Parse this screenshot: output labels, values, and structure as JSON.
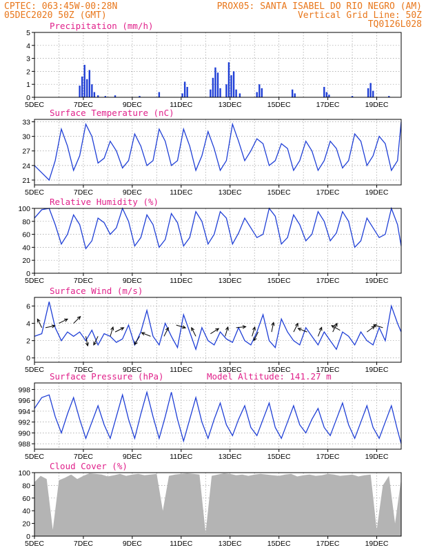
{
  "header": {
    "line1_left": "CPTEC:   063:45W-00:28N",
    "line1_right": "PROX05: SANTA ISABEL DO RIO NEGRO (AM)",
    "line2_left": "05DEC2020 50Z (GMT)",
    "line2_right": "Vertical Grid Line: 50Z",
    "line3_right": "TQ0126L028"
  },
  "colors": {
    "header": "#e8761a",
    "panel_title": "#e0208a",
    "series": "#1f3fd6",
    "bars": "#1f3fd6",
    "cloud": "#b4b4b4",
    "wind_arrow": "#000000"
  },
  "chart_data": [
    {
      "id": "precip",
      "type": "bar",
      "title": "Precipitation (mm/h)",
      "ylim": [
        0,
        5
      ],
      "yticks": [
        0,
        1,
        2,
        3,
        4,
        5
      ],
      "xlabels": [
        "5DEC",
        "7DEC",
        "9DEC",
        "11DEC",
        "13DEC",
        "15DEC",
        "17DEC",
        "19DEC"
      ],
      "x_span_days": 15,
      "grid": true,
      "events": [
        [
          1.85,
          0.9
        ],
        [
          1.95,
          1.6
        ],
        [
          2.05,
          2.5
        ],
        [
          2.15,
          1.4
        ],
        [
          2.25,
          2.1
        ],
        [
          2.35,
          1.0
        ],
        [
          2.45,
          0.4
        ],
        [
          2.6,
          0.15
        ],
        [
          2.9,
          0.1
        ],
        [
          3.3,
          0.15
        ],
        [
          4.3,
          0.1
        ],
        [
          5.1,
          0.4
        ],
        [
          6.05,
          0.3
        ],
        [
          6.15,
          1.2
        ],
        [
          6.25,
          0.8
        ],
        [
          7.2,
          0.6
        ],
        [
          7.3,
          1.5
        ],
        [
          7.4,
          2.3
        ],
        [
          7.5,
          1.9
        ],
        [
          7.6,
          0.7
        ],
        [
          7.85,
          1.0
        ],
        [
          7.95,
          2.7
        ],
        [
          8.05,
          1.7
        ],
        [
          8.15,
          2.0
        ],
        [
          8.25,
          0.6
        ],
        [
          8.4,
          0.3
        ],
        [
          9.1,
          0.4
        ],
        [
          9.2,
          1.0
        ],
        [
          9.3,
          0.7
        ],
        [
          10.55,
          0.6
        ],
        [
          10.65,
          0.3
        ],
        [
          11.85,
          0.8
        ],
        [
          11.95,
          0.4
        ],
        [
          12.05,
          0.2
        ],
        [
          13.0,
          0.1
        ],
        [
          13.65,
          0.7
        ],
        [
          13.75,
          1.1
        ],
        [
          13.85,
          0.5
        ],
        [
          14.5,
          0.1
        ]
      ]
    },
    {
      "id": "temp",
      "type": "line",
      "title": "Surface Temperature (nC)",
      "ylim": [
        20,
        33.5
      ],
      "yticks": [
        21,
        24,
        27,
        30,
        33
      ],
      "xlabels": [
        "5DEC",
        "7DEC",
        "9DEC",
        "11DEC",
        "13DEC",
        "15DEC",
        "17DEC",
        "19DEC"
      ],
      "x_span_days": 15,
      "grid": true,
      "x": [
        0.0,
        0.3,
        0.6,
        0.85,
        1.1,
        1.35,
        1.6,
        1.85,
        2.1,
        2.35,
        2.6,
        2.85,
        3.1,
        3.35,
        3.6,
        3.85,
        4.1,
        4.35,
        4.6,
        4.85,
        5.1,
        5.35,
        5.6,
        5.85,
        6.1,
        6.35,
        6.6,
        6.85,
        7.1,
        7.35,
        7.6,
        7.85,
        8.1,
        8.35,
        8.6,
        8.85,
        9.1,
        9.35,
        9.6,
        9.85,
        10.1,
        10.35,
        10.6,
        10.85,
        11.1,
        11.35,
        11.6,
        11.85,
        12.1,
        12.35,
        12.6,
        12.85,
        13.1,
        13.35,
        13.6,
        13.85,
        14.1,
        14.35,
        14.6,
        14.85,
        15.0
      ],
      "y": [
        24,
        22.5,
        21,
        25,
        31.5,
        28,
        23,
        26,
        32.5,
        30,
        24.5,
        25.5,
        29,
        27,
        23.5,
        25,
        30.5,
        28,
        24,
        25,
        31.5,
        29,
        24,
        25,
        31.5,
        28,
        23,
        26,
        31,
        27.5,
        23,
        25,
        32.5,
        29,
        25,
        27,
        29.5,
        28.5,
        24,
        25,
        28.5,
        27.5,
        23,
        25,
        29,
        27,
        23,
        25,
        29,
        27.5,
        23.5,
        25,
        30.5,
        29,
        24,
        26,
        30,
        28.5,
        23,
        25,
        33
      ]
    },
    {
      "id": "rh",
      "type": "line",
      "title": "Relative Humidity (%)",
      "ylim": [
        0,
        100
      ],
      "yticks": [
        0,
        20,
        40,
        60,
        80,
        100
      ],
      "xlabels": [
        "5DEC",
        "7DEC",
        "9DEC",
        "11DEC",
        "13DEC",
        "15DEC",
        "17DEC",
        "19DEC"
      ],
      "x_span_days": 15,
      "grid": true,
      "x": [
        0.0,
        0.3,
        0.6,
        0.85,
        1.1,
        1.35,
        1.6,
        1.85,
        2.1,
        2.35,
        2.6,
        2.85,
        3.1,
        3.35,
        3.6,
        3.85,
        4.1,
        4.35,
        4.6,
        4.85,
        5.1,
        5.35,
        5.6,
        5.85,
        6.1,
        6.35,
        6.6,
        6.85,
        7.1,
        7.35,
        7.6,
        7.85,
        8.1,
        8.35,
        8.6,
        8.85,
        9.1,
        9.35,
        9.6,
        9.85,
        10.1,
        10.35,
        10.6,
        10.85,
        11.1,
        11.35,
        11.6,
        11.85,
        12.1,
        12.35,
        12.6,
        12.85,
        13.1,
        13.35,
        13.6,
        13.85,
        14.1,
        14.35,
        14.6,
        14.85,
        15.0
      ],
      "y": [
        85,
        98,
        100,
        75,
        45,
        60,
        90,
        75,
        38,
        50,
        85,
        78,
        60,
        70,
        100,
        80,
        42,
        55,
        90,
        75,
        40,
        52,
        92,
        78,
        42,
        55,
        95,
        80,
        45,
        60,
        95,
        85,
        45,
        62,
        85,
        70,
        55,
        60,
        100,
        88,
        45,
        55,
        90,
        75,
        50,
        60,
        95,
        80,
        50,
        62,
        95,
        80,
        40,
        50,
        85,
        70,
        55,
        60,
        100,
        75,
        42
      ]
    },
    {
      "id": "wind",
      "type": "line",
      "title": "Surface Wind (m/s)",
      "ylim": [
        -0.5,
        7
      ],
      "yticks": [
        0,
        2,
        4,
        6
      ],
      "xlabels": [
        "5DEC",
        "7DEC",
        "9DEC",
        "11DEC",
        "13DEC",
        "15DEC",
        "17DEC",
        "19DEC"
      ],
      "x_span_days": 15,
      "grid": true,
      "x": [
        0.0,
        0.3,
        0.6,
        0.85,
        1.1,
        1.35,
        1.6,
        1.85,
        2.1,
        2.35,
        2.6,
        2.85,
        3.1,
        3.35,
        3.6,
        3.85,
        4.1,
        4.35,
        4.6,
        4.85,
        5.1,
        5.35,
        5.6,
        5.85,
        6.1,
        6.35,
        6.6,
        6.85,
        7.1,
        7.35,
        7.6,
        7.85,
        8.1,
        8.35,
        8.6,
        8.85,
        9.1,
        9.35,
        9.6,
        9.85,
        10.1,
        10.35,
        10.6,
        10.85,
        11.1,
        11.35,
        11.6,
        11.85,
        12.1,
        12.35,
        12.6,
        12.85,
        13.1,
        13.35,
        13.6,
        13.85,
        14.1,
        14.35,
        14.6,
        14.85,
        15.0
      ],
      "y": [
        2.5,
        2.8,
        6.5,
        3.5,
        2.0,
        3.0,
        2.5,
        3.0,
        2.0,
        3.2,
        1.5,
        2.8,
        2.5,
        1.8,
        2.2,
        3.8,
        1.5,
        3.0,
        5.5,
        2.5,
        1.5,
        4.0,
        2.5,
        1.2,
        5.0,
        3.0,
        1.0,
        3.5,
        2.0,
        1.5,
        3.0,
        2.2,
        1.8,
        3.5,
        2.0,
        1.5,
        3.0,
        5.0,
        2.0,
        1.2,
        4.5,
        3.0,
        2.0,
        1.5,
        3.5,
        2.5,
        1.5,
        3.0,
        2.0,
        1.0,
        3.0,
        2.5,
        1.5,
        3.0,
        2.0,
        1.5,
        3.5,
        2.0,
        6.0,
        4.0,
        3.0
      ],
      "arrows": [
        [
          0.3,
          3.5,
          -0.5,
          1
        ],
        [
          0.45,
          3.5,
          1,
          0.2
        ],
        [
          1.0,
          4.0,
          1,
          0.5
        ],
        [
          1.6,
          4.0,
          0.8,
          0.8
        ],
        [
          2.1,
          2.5,
          0.2,
          -1
        ],
        [
          2.6,
          2.5,
          -0.5,
          -1
        ],
        [
          3.1,
          2.5,
          0.3,
          1
        ],
        [
          3.3,
          3.0,
          1,
          0.5
        ],
        [
          4.3,
          2.5,
          -0.6,
          -1
        ],
        [
          4.75,
          2.5,
          -1,
          0.4
        ],
        [
          5.3,
          2.5,
          0.5,
          1
        ],
        [
          5.8,
          3.8,
          1,
          -0.3
        ],
        [
          6.6,
          2.5,
          -0.5,
          1
        ],
        [
          7.2,
          2.8,
          0.8,
          0.5
        ],
        [
          7.8,
          2.5,
          0.3,
          1
        ],
        [
          8.25,
          3.5,
          1,
          0.1
        ],
        [
          8.9,
          2.5,
          0.3,
          1
        ],
        [
          9.15,
          3.0,
          -0.5,
          -1
        ],
        [
          9.7,
          3.0,
          0.2,
          1
        ],
        [
          10.6,
          3.0,
          0.5,
          1
        ],
        [
          11.15,
          3.0,
          -1,
          0.4
        ],
        [
          11.6,
          2.5,
          0.4,
          1
        ],
        [
          12.2,
          3.0,
          0.5,
          1
        ],
        [
          12.5,
          3.2,
          -0.9,
          0.5
        ],
        [
          13.6,
          3.0,
          0.8,
          0.6
        ],
        [
          14.25,
          3.5,
          -1,
          0.3
        ]
      ]
    },
    {
      "id": "pres",
      "type": "line",
      "title": "Surface Pressure (hPa)",
      "annotation": "Model Altitude: 141.27 m",
      "ylim": [
        987,
        999.2
      ],
      "yticks": [
        988,
        990,
        992,
        994,
        996,
        998
      ],
      "xlabels": [
        "5DEC",
        "7DEC",
        "9DEC",
        "11DEC",
        "13DEC",
        "15DEC",
        "17DEC",
        "19DEC"
      ],
      "x_span_days": 15,
      "grid": true,
      "x": [
        0.0,
        0.3,
        0.6,
        0.85,
        1.1,
        1.35,
        1.6,
        1.85,
        2.1,
        2.35,
        2.6,
        2.85,
        3.1,
        3.35,
        3.6,
        3.85,
        4.1,
        4.35,
        4.6,
        4.85,
        5.1,
        5.35,
        5.6,
        5.85,
        6.1,
        6.35,
        6.6,
        6.85,
        7.1,
        7.35,
        7.6,
        7.85,
        8.1,
        8.35,
        8.6,
        8.85,
        9.1,
        9.35,
        9.6,
        9.85,
        10.1,
        10.35,
        10.6,
        10.85,
        11.1,
        11.35,
        11.6,
        11.85,
        12.1,
        12.35,
        12.6,
        12.85,
        13.1,
        13.35,
        13.6,
        13.85,
        14.1,
        14.35,
        14.6,
        14.85,
        15.0
      ],
      "y": [
        994.5,
        996.5,
        997.0,
        993.0,
        990.0,
        993.5,
        996.5,
        992.5,
        989.0,
        992.0,
        995.0,
        991.5,
        989.0,
        993.0,
        997.0,
        992.5,
        989.0,
        993.5,
        997.5,
        993.0,
        989.0,
        993.0,
        997.5,
        992.5,
        988.5,
        992.5,
        996.5,
        992.0,
        989.0,
        992.5,
        995.5,
        991.5,
        989.5,
        992.5,
        995.0,
        991.0,
        989.5,
        992.5,
        995.5,
        991.0,
        989.0,
        992.0,
        995.0,
        991.5,
        990.0,
        992.5,
        994.5,
        991.0,
        989.5,
        992.5,
        995.5,
        991.5,
        989.0,
        992.0,
        995.0,
        991.0,
        989.0,
        992.0,
        995.0,
        990.5,
        988.0
      ]
    },
    {
      "id": "cloud",
      "type": "area",
      "title": "Cloud Cover (%)",
      "ylim": [
        0,
        100
      ],
      "yticks": [
        0,
        20,
        40,
        60,
        80,
        100
      ],
      "xlabels": [
        "5DEC",
        "7DEC",
        "9DEC",
        "11DEC",
        "13DEC",
        "15DEC",
        "17DEC",
        "19DEC"
      ],
      "x_span_days": 15,
      "grid": true,
      "x": [
        0.0,
        0.25,
        0.5,
        0.75,
        1.0,
        1.25,
        1.5,
        1.75,
        2.0,
        2.25,
        2.5,
        2.75,
        3.0,
        3.25,
        3.5,
        3.75,
        4.0,
        4.25,
        4.5,
        4.75,
        5.0,
        5.25,
        5.5,
        5.75,
        6.0,
        6.25,
        6.5,
        6.75,
        7.0,
        7.25,
        7.5,
        7.75,
        8.0,
        8.25,
        8.5,
        8.75,
        9.0,
        9.25,
        9.5,
        9.75,
        10.0,
        10.25,
        10.5,
        10.75,
        11.0,
        11.25,
        11.5,
        11.75,
        12.0,
        12.25,
        12.5,
        12.75,
        13.0,
        13.25,
        13.5,
        13.75,
        14.0,
        14.25,
        14.5,
        14.75,
        15.0
      ],
      "y": [
        85,
        95,
        90,
        10,
        88,
        92,
        97,
        90,
        95,
        99,
        98,
        97,
        94,
        96,
        98,
        95,
        97,
        98,
        96,
        97,
        98,
        40,
        95,
        97,
        98,
        99,
        98,
        97,
        5,
        95,
        97,
        99,
        98,
        96,
        97,
        95,
        97,
        98,
        97,
        96,
        95,
        97,
        98,
        94,
        96,
        97,
        95,
        96,
        98,
        97,
        95,
        96,
        97,
        94,
        96,
        97,
        10,
        80,
        95,
        20,
        90
      ]
    }
  ]
}
